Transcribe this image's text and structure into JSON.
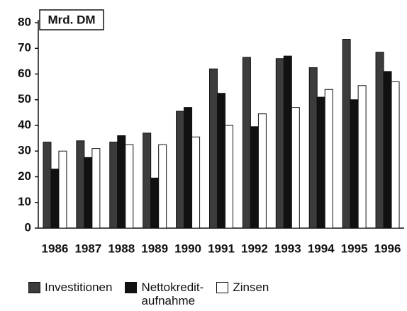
{
  "chart_data": {
    "type": "bar",
    "y_label": "Mrd. DM",
    "categories": [
      "1986",
      "1987",
      "1988",
      "1989",
      "1990",
      "1991",
      "1992",
      "1993",
      "1994",
      "1995",
      "1996"
    ],
    "series": [
      {
        "name": "Investitionen",
        "color": "#3c3c3c",
        "values": [
          33.5,
          34,
          33.5,
          37,
          45.5,
          62,
          66.5,
          66,
          62.5,
          73.5,
          68.5
        ]
      },
      {
        "name": "Nettokredit-\naufnahme",
        "color": "#111111",
        "values": [
          23,
          27.5,
          36,
          19.5,
          47,
          52.5,
          39.5,
          67,
          51,
          50,
          61
        ]
      },
      {
        "name": "Zinsen",
        "color": "#ffffff",
        "values": [
          30,
          31,
          32.5,
          32.5,
          35.5,
          40,
          44.5,
          47,
          54,
          55.5,
          57
        ]
      }
    ],
    "ylim": [
      0,
      80
    ],
    "yticks": [
      0,
      10,
      20,
      30,
      40,
      50,
      60,
      70,
      80
    ],
    "grid": false,
    "legend": "bottom"
  }
}
